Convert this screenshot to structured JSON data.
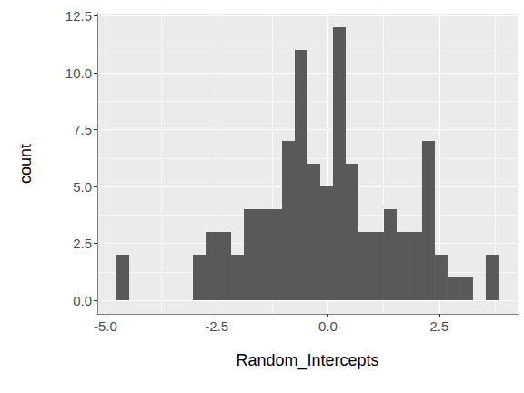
{
  "chart_data": {
    "type": "histogram",
    "x_label": "Random_Intercepts",
    "y_label": "count",
    "bins": [
      -4.75,
      -4.464,
      -4.178,
      -3.892,
      -3.606,
      -3.32,
      -3.034,
      -2.748,
      -2.462,
      -2.176,
      -1.89,
      -1.604,
      -1.318,
      -1.032,
      -0.746,
      -0.46,
      -0.174,
      0.112,
      0.398,
      0.684,
      0.97,
      1.256,
      1.542,
      1.828,
      2.114,
      2.4,
      2.686,
      2.972,
      3.258,
      3.544,
      3.83
    ],
    "counts": [
      2,
      0,
      0,
      0,
      0,
      0,
      2,
      3,
      3,
      2,
      4,
      4,
      4,
      7,
      11,
      6,
      5,
      12,
      6,
      3,
      3,
      4,
      3,
      3,
      7,
      2,
      1,
      1,
      0,
      2
    ],
    "color": "#595959",
    "xlim": [
      -5.18,
      4.26
    ],
    "ylim": [
      -0.6,
      12.6
    ],
    "xticks": [
      {
        "value": -5,
        "label": "-5.0"
      },
      {
        "value": -2.5,
        "label": "-2.5"
      },
      {
        "value": 0,
        "label": "0.0"
      },
      {
        "value": 2.5,
        "label": "2.5"
      }
    ],
    "yticks": [
      {
        "value": 0,
        "label": "0.0"
      },
      {
        "value": 2.5,
        "label": "2.5"
      },
      {
        "value": 5,
        "label": "5.0"
      },
      {
        "value": 7.5,
        "label": "7.5"
      },
      {
        "value": 10,
        "label": "10.0"
      },
      {
        "value": 12.5,
        "label": "12.5"
      }
    ],
    "grid": true
  }
}
